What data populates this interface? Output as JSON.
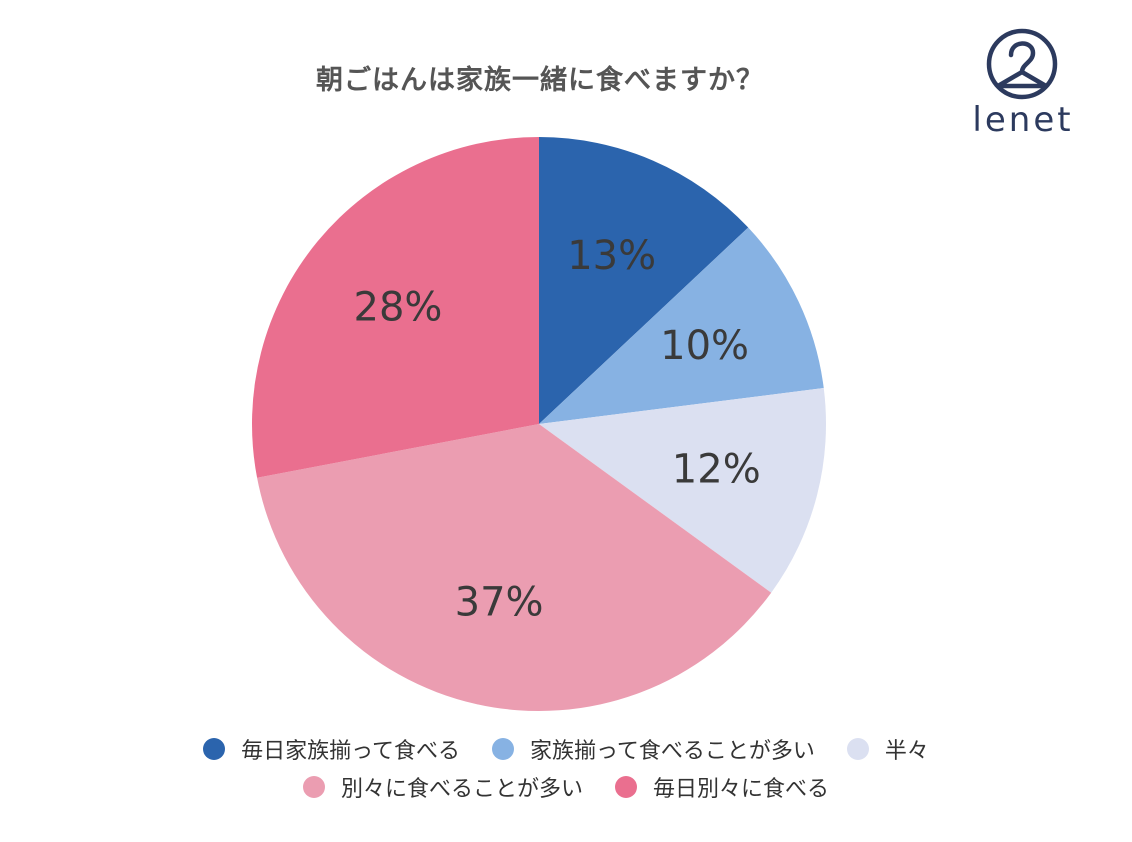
{
  "title": "朝ごはんは家族一緒に食べますか？",
  "logo": {
    "text": "lenet",
    "icon": "hanger-logo-icon"
  },
  "chart_data": {
    "type": "pie",
    "title": "朝ごはんは家族一緒に食べますか？",
    "start": "12 o'clock",
    "direction": "clockwise",
    "legend_position": "bottom",
    "slices": [
      {
        "label": "毎日家族揃って食べる",
        "value": 13,
        "display": "13%",
        "color": "#2b64ad"
      },
      {
        "label": "家族揃って食べることが多い",
        "value": 10,
        "display": "10%",
        "color": "#87b2e3"
      },
      {
        "label": "半々",
        "value": 12,
        "display": "12%",
        "color": "#dbe0f1"
      },
      {
        "label": "別々に食べることが多い",
        "value": 37,
        "display": "37%",
        "color": "#eb9db1"
      },
      {
        "label": "毎日別々に食べる",
        "value": 28,
        "display": "28%",
        "color": "#ea6f8f"
      }
    ]
  },
  "legend": {
    "rows": [
      [
        {
          "label": "毎日家族揃って食べる",
          "color": "#2b64ad"
        },
        {
          "label": "家族揃って食べることが多い",
          "color": "#87b2e3"
        },
        {
          "label": "半々",
          "color": "#dbe0f1"
        }
      ],
      [
        {
          "label": "別々に食べることが多い",
          "color": "#eb9db1"
        },
        {
          "label": "毎日別々に食べる",
          "color": "#ea6f8f"
        }
      ]
    ]
  }
}
